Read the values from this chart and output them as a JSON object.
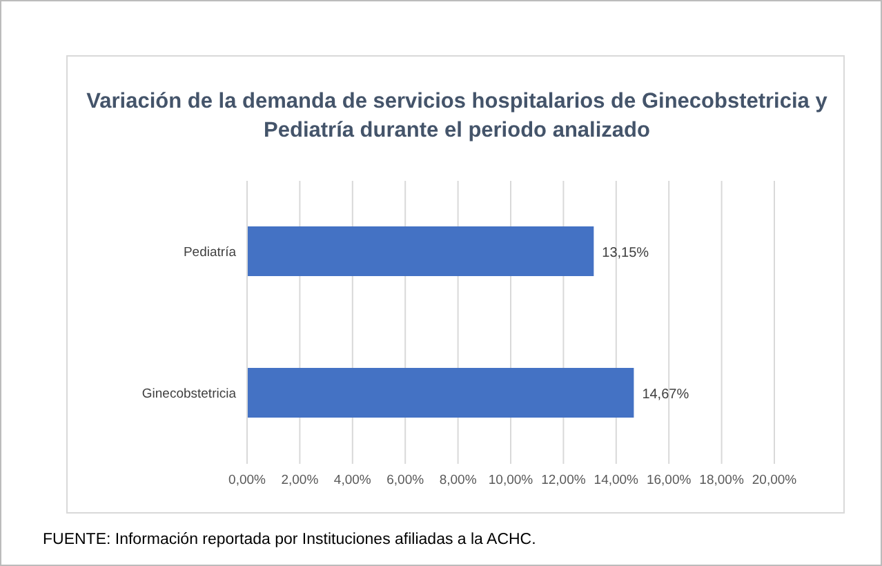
{
  "chart_data": {
    "type": "bar",
    "orientation": "horizontal",
    "title": "Variación de la demanda de servicios hospitalarios de Ginecobstetricia y Pediatría durante el periodo analizado",
    "categories": [
      "Pediatría",
      "Ginecobstetricia"
    ],
    "values": [
      13.15,
      14.67
    ],
    "color": "#4472c4",
    "value_labels": [
      "13,15%",
      "14,67%"
    ],
    "xlim": [
      0,
      20
    ],
    "xticks": [
      {
        "value": 0,
        "label": "0,00%"
      },
      {
        "value": 2,
        "label": "2,00%"
      },
      {
        "value": 4,
        "label": "4,00%"
      },
      {
        "value": 6,
        "label": "6,00%"
      },
      {
        "value": 8,
        "label": "8,00%"
      },
      {
        "value": 10,
        "label": "10,00%"
      },
      {
        "value": 12,
        "label": "12,00%"
      },
      {
        "value": 14,
        "label": "14,00%"
      },
      {
        "value": 16,
        "label": "16,00%"
      },
      {
        "value": 18,
        "label": "18,00%"
      },
      {
        "value": 20,
        "label": "20,00%"
      }
    ],
    "grid": "x",
    "annotations": [
      "FUENTE: Información reportada por Instituciones afiliadas a la ACHC."
    ]
  }
}
